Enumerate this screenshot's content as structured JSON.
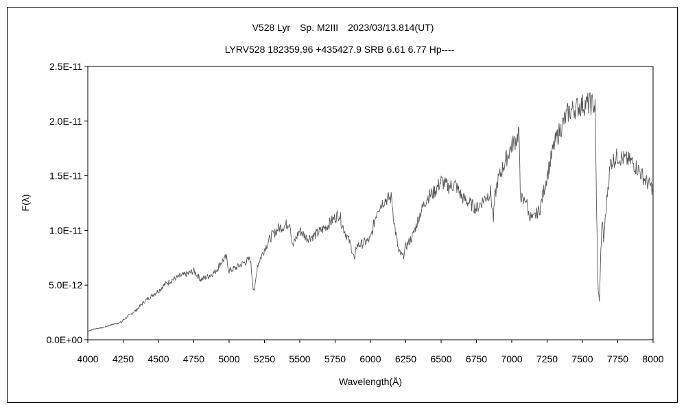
{
  "chart_data": {
    "type": "line",
    "title": "V528 Lyr　Sp. M2III　2023/03/13.814(UT)",
    "subtitle": "LYRV528 182359.96 +435427.9 SRB 6.61 6.77 Hp----",
    "xlabel": "Wavelength(Å)",
    "ylabel": "F(λ)",
    "xlim": [
      4000,
      8000
    ],
    "ylim": [
      0,
      2.5e-11
    ],
    "xticks": [
      4000,
      4250,
      4500,
      4750,
      5000,
      5250,
      5500,
      5750,
      6000,
      6250,
      6500,
      6750,
      7000,
      7250,
      7500,
      7750,
      8000
    ],
    "xtick_labels": [
      "4000",
      "4250",
      "4500",
      "4750",
      "5000",
      "5250",
      "5500",
      "5750",
      "6000",
      "6250",
      "6500",
      "6750",
      "7000",
      "7250",
      "7500",
      "7750",
      "8000"
    ],
    "yticks": [
      0,
      5e-12,
      1e-11,
      1.5e-11,
      2e-11,
      2.5e-11
    ],
    "ytick_labels": [
      "0.0E+00",
      "5.0E-12",
      "1.0E-11",
      "1.5E-11",
      "2.0E-11",
      "2.5E-11"
    ],
    "grid": false,
    "legend": "none",
    "line_color": "#555555",
    "series": [
      {
        "x": [
          4000,
          4050,
          4100,
          4150,
          4200,
          4240,
          4250,
          4300,
          4350,
          4400,
          4450,
          4500,
          4550,
          4600,
          4650,
          4700,
          4750,
          4800,
          4850,
          4900,
          4950,
          4980,
          5000,
          5050,
          5100,
          5150,
          5170,
          5180,
          5200,
          5250,
          5300,
          5350,
          5400,
          5430,
          5450,
          5480,
          5500,
          5550,
          5600,
          5650,
          5700,
          5750,
          5780,
          5800,
          5850,
          5870,
          5890,
          5900,
          5950,
          6000,
          6050,
          6100,
          6150,
          6170,
          6200,
          6230,
          6250,
          6300,
          6350,
          6400,
          6450,
          6500,
          6550,
          6600,
          6650,
          6700,
          6750,
          6800,
          6850,
          6870,
          6880,
          6900,
          6950,
          7000,
          7040,
          7050,
          7060,
          7080,
          7100,
          7120,
          7150,
          7200,
          7250,
          7300,
          7350,
          7400,
          7450,
          7500,
          7550,
          7580,
          7590,
          7600,
          7610,
          7620,
          7630,
          7640,
          7650,
          7680,
          7700,
          7750,
          7800,
          7850,
          7900,
          7950,
          8000
        ],
        "y": [
          8e-13,
          1e-12,
          1.1e-12,
          1.3e-12,
          1.5e-12,
          1.6e-12,
          1.8e-12,
          2.3e-12,
          2.8e-12,
          3.5e-12,
          4e-12,
          4.5e-12,
          5.1e-12,
          5.5e-12,
          5.8e-12,
          6e-12,
          6.3e-12,
          5.5e-12,
          5.8e-12,
          6.2e-12,
          7.2e-12,
          7.5e-12,
          6.3e-12,
          6.6e-12,
          7e-12,
          7.4e-12,
          4.8e-12,
          4.5e-12,
          6.8e-12,
          8.3e-12,
          9.5e-12,
          1.02e-11,
          1.05e-11,
          1.08e-11,
          8.5e-12,
          9.5e-12,
          1e-11,
          9.3e-12,
          9.5e-12,
          1e-11,
          1.05e-11,
          1.12e-11,
          1.15e-11,
          1.05e-11,
          9e-12,
          8.2e-12,
          7.2e-12,
          8.6e-12,
          8.8e-12,
          9.2e-12,
          1.2e-11,
          1.28e-11,
          1.3e-11,
          1.05e-11,
          8e-12,
          7.6e-12,
          8.5e-12,
          9.5e-12,
          1.15e-11,
          1.3e-11,
          1.35e-11,
          1.45e-11,
          1.4e-11,
          1.42e-11,
          1.3e-11,
          1.25e-11,
          1.2e-11,
          1.28e-11,
          1.35e-11,
          1.1e-11,
          1.3e-11,
          1.45e-11,
          1.62e-11,
          1.78e-11,
          1.85e-11,
          1.93e-11,
          1.35e-11,
          1.25e-11,
          1.3e-11,
          1.15e-11,
          1.1e-11,
          1.2e-11,
          1.5e-11,
          1.78e-11,
          1.95e-11,
          2.08e-11,
          2.12e-11,
          2.15e-11,
          2.16e-11,
          2.15e-11,
          2.12e-11,
          1.2e-11,
          5e-12,
          3.4e-12,
          8e-12,
          1.1e-11,
          9e-12,
          1.4e-11,
          1.62e-11,
          1.68e-11,
          1.65e-11,
          1.63e-11,
          1.55e-11,
          1.45e-11,
          1.38e-11
        ]
      }
    ]
  }
}
